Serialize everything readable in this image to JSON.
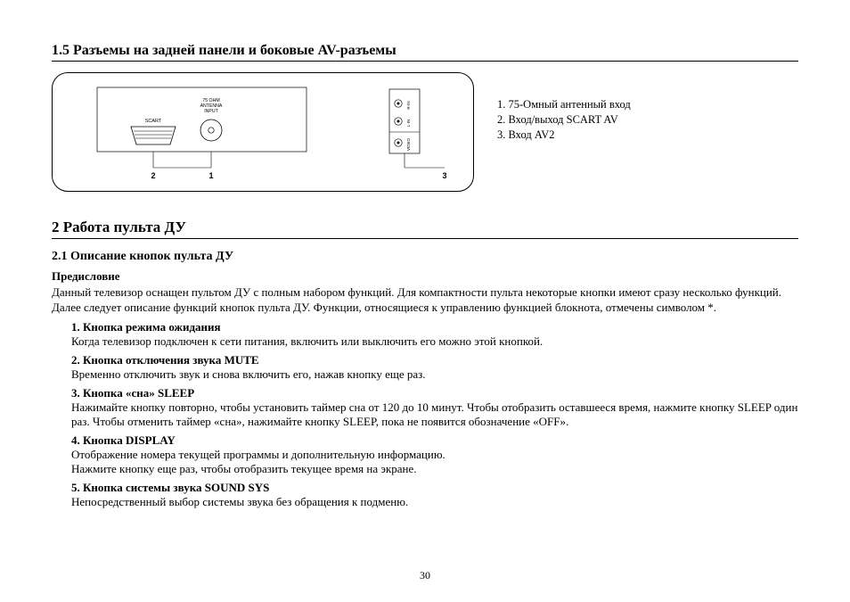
{
  "section15": {
    "title": "1.5 Разъемы на задней панели и боковые AV-разъемы",
    "diagram": {
      "labels": {
        "antenna_l1": "75 OHM",
        "antenna_l2": "ANTENNA",
        "antenna_l3": "INPUT",
        "scart": "SCART",
        "num1": "1",
        "num2": "2",
        "num3": "3",
        "rIn": "R-IN",
        "lIn": "L-IN",
        "video": "VIDEO"
      }
    },
    "legend": {
      "l1": "1. 75-Омный антенный вход",
      "l2": "2. Вход/выход SCART AV",
      "l3": "3. Вход AV2"
    }
  },
  "section2": {
    "title": "2 Работа пульта ДУ",
    "sub21": "2.1 Описание кнопок пульта ДУ",
    "preface_label": "Предисловие",
    "preface_text": "Данный телевизор оснащен пультом ДУ с полным набором функций. Для компактности пульта некоторые кнопки имеют сразу несколько функций. Далее следует описание функций кнопок пульта ДУ. Функции, относящиеся к управлению функцией блокнота, отмечены символом *.",
    "items": [
      {
        "title": "1.  Кнопка режима ожидания",
        "text": "Когда телевизор подключен к сети питания, включить или выключить его можно этой кнопкой."
      },
      {
        "title": "2.  Кнопка отключения звука MUTE",
        "text": "Временно отключить звук и снова включить его, нажав кнопку еще раз."
      },
      {
        "title": "3.  Кнопка «сна» SLEEP",
        "text": "Нажимайте кнопку повторно, чтобы установить таймер сна от 120 до 10 минут. Чтобы отобразить оставшееся время, нажмите кнопку SLEEP один раз. Чтобы отменить таймер «сна», нажимайте кнопку SLEEP, пока не появится обозначение «OFF»."
      },
      {
        "title": "4.  Кнопка DISPLAY",
        "text": "Отображение номера текущей программы и дополнительную информацию.\nНажмите кнопку еще раз, чтобы отобразить текущее время на экране."
      },
      {
        "title": "5.  Кнопка системы звука SOUND SYS",
        "text": "Непосредственный выбор системы звука без обращения к подменю."
      }
    ]
  },
  "page_number": "30"
}
